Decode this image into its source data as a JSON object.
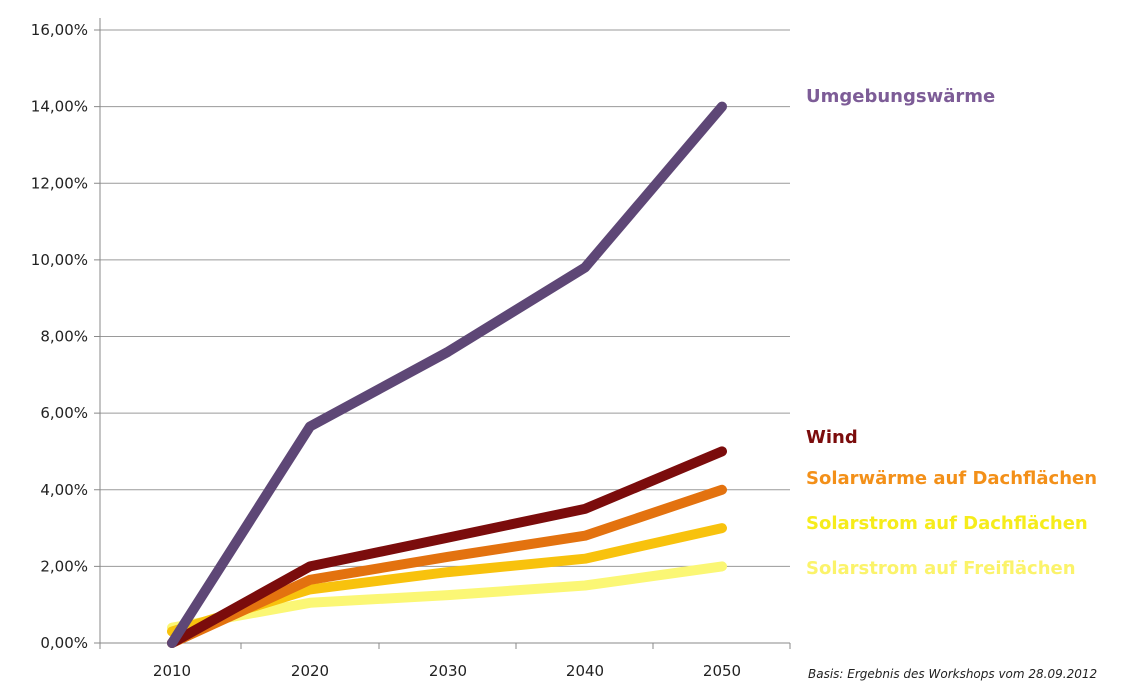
{
  "chart_data": {
    "type": "line",
    "x": [
      "2010",
      "2020",
      "2030",
      "2040",
      "2050"
    ],
    "ylim": [
      0,
      16
    ],
    "yticks": [
      "0,00%",
      "2,00%",
      "4,00%",
      "6,00%",
      "8,00%",
      "10,00%",
      "12,00%",
      "14,00%",
      "16,00%"
    ],
    "grid": true,
    "series": [
      {
        "name": "Umgebungswärme",
        "color": "#5e4776",
        "label_color": "#7d5c97",
        "values": [
          0,
          5.65,
          7.6,
          9.8,
          14.0
        ]
      },
      {
        "name": "Wind",
        "color": "#7b0c0c",
        "label_color": "#7b0c0c",
        "values": [
          0,
          2.0,
          2.75,
          3.5,
          5.0
        ]
      },
      {
        "name": "Solarwärme auf Dachflächen",
        "color": "#e3720f",
        "label_color": "#f39019",
        "values": [
          0,
          1.65,
          2.25,
          2.8,
          4.0
        ]
      },
      {
        "name": "Solarstrom auf Dachflächen",
        "color": "#f8c20d",
        "label_color": "#f6ec1b",
        "values": [
          0.3,
          1.4,
          1.85,
          2.2,
          3.0
        ]
      },
      {
        "name": "Solarstrom auf Freiflächen",
        "color": "#fbf775",
        "label_color": "#fbf36a",
        "values": [
          0.4,
          1.05,
          1.25,
          1.5,
          2.0
        ]
      }
    ],
    "footnote": "Basis: Ergebnis des Workshops vom 28.09.2012"
  }
}
